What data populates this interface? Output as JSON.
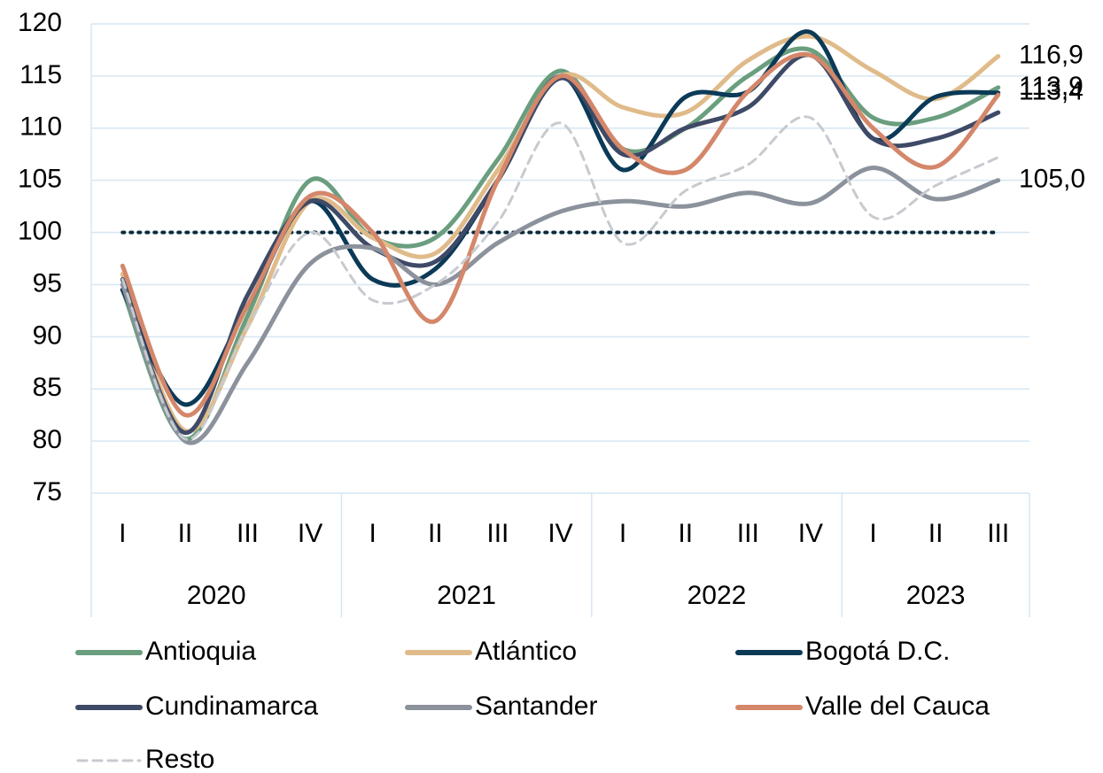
{
  "chart_data": {
    "type": "line",
    "year_groups": [
      {
        "label": "2020",
        "categories": [
          "I",
          "II",
          "III",
          "IV"
        ]
      },
      {
        "label": "2021",
        "categories": [
          "I",
          "II",
          "III",
          "IV"
        ]
      },
      {
        "label": "2022",
        "categories": [
          "I",
          "II",
          "III",
          "IV"
        ]
      },
      {
        "label": "2023",
        "categories": [
          "I",
          "II",
          "III"
        ]
      }
    ],
    "ylim": [
      75,
      120
    ],
    "yticks": [
      75,
      80,
      85,
      90,
      95,
      100,
      105,
      110,
      115,
      120
    ],
    "grid": true,
    "reference_line": 100,
    "legend": "bottom",
    "series": [
      {
        "name": "Antioquia",
        "color": "#6a9e7f",
        "values": [
          94.5,
          80.2,
          92,
          105,
          99.5,
          99.5,
          107,
          115.5,
          108,
          110,
          115,
          117.5,
          111,
          111,
          113.9
        ],
        "value_labels": [
          null,
          null,
          null,
          null,
          null,
          null,
          null,
          null,
          null,
          null,
          null,
          null,
          null,
          null,
          "113,9"
        ]
      },
      {
        "name": "Atlántico",
        "color": "#e0bb8a",
        "values": [
          96,
          81,
          91,
          103,
          99.5,
          98,
          106,
          115,
          112,
          111.5,
          116.5,
          118.8,
          115.5,
          112.8,
          116.9
        ],
        "value_labels": [
          null,
          null,
          null,
          null,
          null,
          null,
          null,
          null,
          null,
          null,
          null,
          null,
          null,
          null,
          "116,9"
        ]
      },
      {
        "name": "Bogotá D.C.",
        "color": "#0b3a57",
        "values": [
          94.5,
          83.5,
          93,
          103,
          95.5,
          96.5,
          105,
          115,
          106,
          113,
          113.5,
          119.2,
          109,
          113,
          113.4
        ],
        "value_labels": [
          null,
          null,
          null,
          null,
          null,
          null,
          null,
          null,
          null,
          null,
          null,
          null,
          null,
          null,
          "113,4"
        ]
      },
      {
        "name": "Cundinamarca",
        "color": "#3e4a66",
        "values": [
          95.5,
          80.8,
          94,
          103,
          98.5,
          97.2,
          105,
          114.8,
          107.5,
          110,
          112,
          117,
          109,
          109,
          111.5
        ]
      },
      {
        "name": "Santander",
        "color": "#8c929c",
        "values": [
          95,
          80,
          87.5,
          97,
          98.5,
          95,
          99,
          102,
          103,
          102.5,
          103.8,
          102.8,
          106.2,
          103.2,
          105.0
        ],
        "value_labels": [
          null,
          null,
          null,
          null,
          null,
          null,
          null,
          null,
          null,
          null,
          null,
          null,
          null,
          null,
          "105,0"
        ]
      },
      {
        "name": "Valle del Cauca",
        "color": "#d4876a",
        "values": [
          96.8,
          82.5,
          93,
          103.5,
          100,
          91.5,
          105,
          115,
          108,
          106,
          113.5,
          117,
          110,
          106.3,
          113.2
        ]
      },
      {
        "name": "Resto",
        "color": "#c7cacf",
        "dashed": true,
        "values": [
          95.5,
          80.2,
          91,
          100,
          93.5,
          95,
          101,
          110.5,
          99,
          104,
          106.5,
          111,
          101.5,
          104.5,
          107.2
        ]
      }
    ]
  }
}
